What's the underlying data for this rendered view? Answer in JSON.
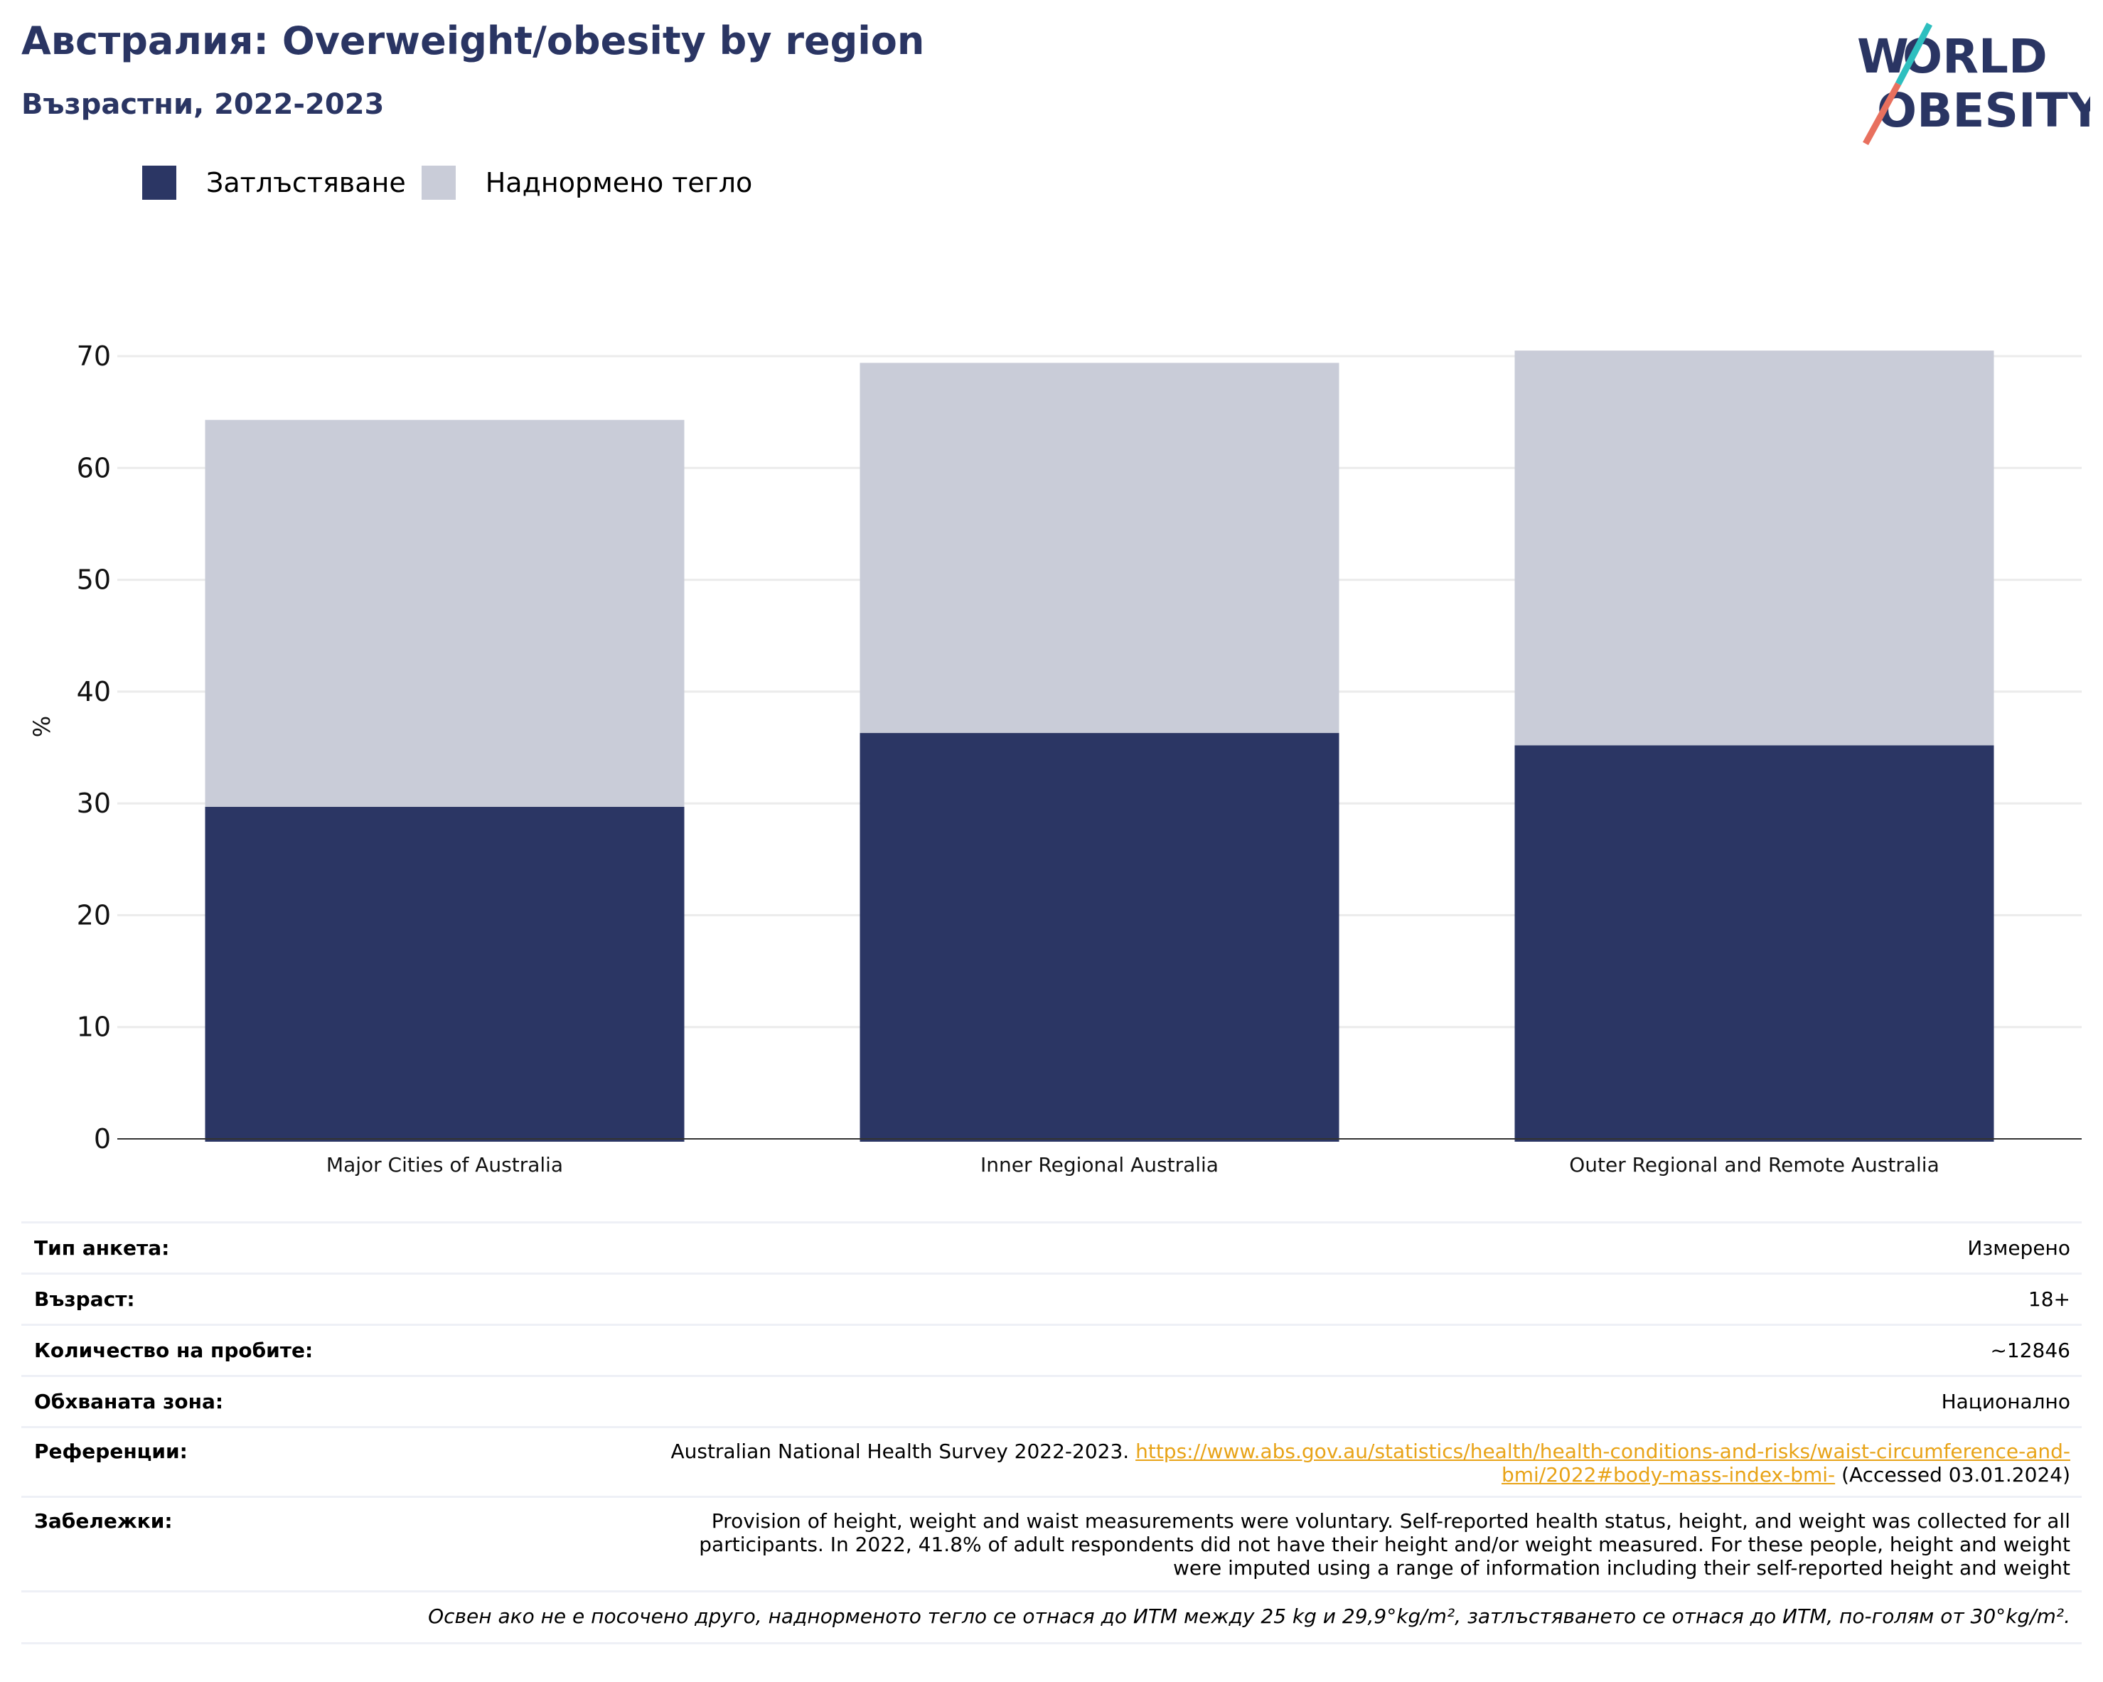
{
  "header": {
    "title": "Австралия: Overweight/obesity by region",
    "subtitle": "Възрастни, 2022-2023",
    "logo_text": [
      "WORLD",
      "OBESITY"
    ]
  },
  "colors": {
    "obesity": "#2b3664",
    "overweight": "#c9ccd8",
    "brand": "#2a3563",
    "logo_teal": "#2ebfbf",
    "logo_coral": "#e8705e",
    "link": "#e8a317"
  },
  "chart_data": {
    "type": "bar",
    "stacked": true,
    "title": "Австралия: Overweight/obesity by region",
    "subtitle": "Възрастни, 2022-2023",
    "ylabel": "%",
    "xlabel": "",
    "ylim": [
      0,
      70
    ],
    "yticks": [
      0,
      10,
      20,
      30,
      40,
      50,
      60,
      70
    ],
    "grid": true,
    "legend_position": "top-left",
    "categories": [
      "Major Cities of Australia",
      "Inner Regional Australia",
      "Outer Regional and Remote Australia"
    ],
    "series": [
      {
        "name": "Затлъстяване",
        "values": [
          29.7,
          36.3,
          35.2
        ]
      },
      {
        "name": "Наднормено тегло",
        "values": [
          34.6,
          33.1,
          35.3
        ]
      }
    ]
  },
  "info": {
    "survey_type": {
      "label": "Тип анкета:",
      "value": "Измерено"
    },
    "age": {
      "label": "Възраст:",
      "value": "18+"
    },
    "sample_size": {
      "label": "Количество на пробите:",
      "value": "~12846"
    },
    "coverage": {
      "label": "Обхваната зона:",
      "value": "Национално"
    },
    "references": {
      "label": "Референции:",
      "text_before": "Australian National Health Survey 2022-2023. ",
      "link_line1": "https://www.abs.gov.au/statistics/health/health-conditions-and-risks/waist-circumference-and-",
      "link_line2": "bmi/2022#body-mass-index-bmi-",
      "text_after": " (Accessed 03.01.2024)"
    },
    "notes": {
      "label": "Забележки:",
      "line1": "Provision of height, weight and waist measurements were voluntary. Self-reported health status, height, and weight was collected for all",
      "line2": "participants. In 2022, 41.8% of adult respondents did not have their height and/or weight measured. For these people, height and weight",
      "line3": "were imputed using a range of information including their self-reported height and weight"
    },
    "footnote": "Освен ако не е посочено друго, наднорменото тегло се отнася до ИТМ между 25 kg и 29,9°kg/m², затлъстяването се отнася до ИТМ, по-голям от 30°kg/m²."
  }
}
